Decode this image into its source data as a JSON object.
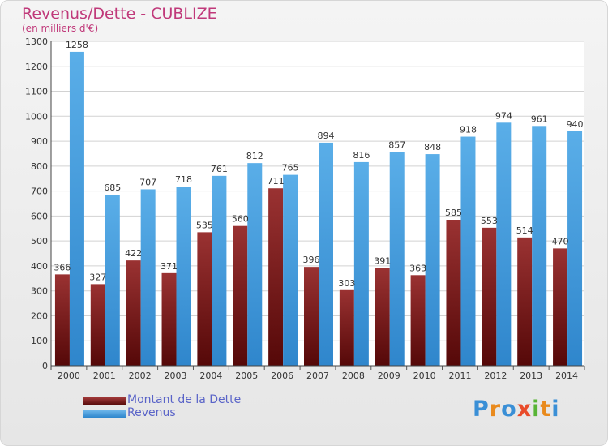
{
  "header": {
    "title": "Revenus/Dette - CUBLIZE",
    "subtitle": "(en milliers d'€)"
  },
  "legend": {
    "items": [
      {
        "label": "Montant de la Dette",
        "color": "#7a1e1e"
      },
      {
        "label": "Revenus",
        "color": "#4aa0e0"
      }
    ]
  },
  "logo": {
    "text": "Proxiti",
    "letter_colors": [
      "#3a8fd6",
      "#e98a1d",
      "#3a8fd6",
      "#e94b2a",
      "#58b435",
      "#e98a1d",
      "#3a8fd6"
    ]
  },
  "chart_data": {
    "type": "bar",
    "title": "Revenus/Dette - CUBLIZE",
    "subtitle": "(en milliers d'€)",
    "categories": [
      "2000",
      "2001",
      "2002",
      "2003",
      "2004",
      "2005",
      "2006",
      "2007",
      "2008",
      "2009",
      "2010",
      "2011",
      "2012",
      "2013",
      "2014"
    ],
    "series": [
      {
        "name": "Montant de la Dette",
        "color": "#7a1e1e",
        "values": [
          366,
          327,
          422,
          371,
          535,
          560,
          711,
          396,
          303,
          391,
          363,
          585,
          553,
          514,
          470
        ]
      },
      {
        "name": "Revenus",
        "color": "#4aa0e0",
        "values": [
          1258,
          685,
          707,
          718,
          761,
          812,
          765,
          894,
          816,
          857,
          848,
          918,
          974,
          961,
          940
        ]
      }
    ],
    "ylim": [
      0,
      1300
    ],
    "yticks": [
      0,
      100,
      200,
      300,
      400,
      500,
      600,
      700,
      800,
      900,
      1000,
      1100,
      1200,
      1300
    ],
    "grid": true,
    "legend_position": "bottom-left"
  }
}
